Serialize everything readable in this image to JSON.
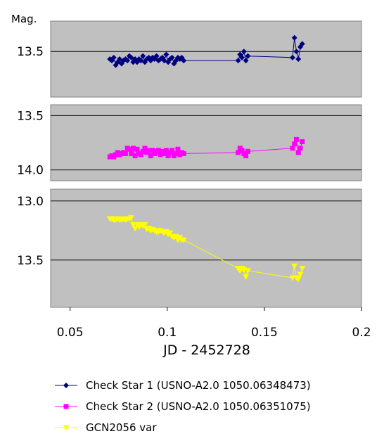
{
  "chart_data": {
    "type": "line",
    "ylabel": "Mag.",
    "xlabel": "JD - 2452728",
    "xlim": [
      0.04,
      0.2
    ],
    "x_ticks": [
      "0.05",
      "0.1",
      "0.15",
      "0.2"
    ],
    "x_tick_values": [
      0.05,
      0.1,
      0.15,
      0.2
    ],
    "legend_position": "bottom",
    "panels": [
      {
        "series_index": 0,
        "ylim_top": 13.3,
        "ylim_bottom": 13.8,
        "y_ticks": [
          "13.5"
        ],
        "y_tick_values": [
          13.5
        ],
        "gridlines": [
          13.5
        ]
      },
      {
        "series_index": 1,
        "ylim_top": 13.4,
        "ylim_bottom": 14.1,
        "y_ticks": [
          "13.5",
          "14.0"
        ],
        "y_tick_values": [
          13.5,
          14.0
        ],
        "gridlines": [
          13.5,
          14.0
        ]
      },
      {
        "series_index": 2,
        "ylim_top": 12.9,
        "ylim_bottom": 13.9,
        "y_ticks": [
          "13.0",
          "13.5"
        ],
        "y_tick_values": [
          13.0,
          13.5
        ],
        "gridlines": [
          13.0,
          13.5
        ]
      }
    ],
    "series": [
      {
        "name": "Check Star 1 (USNO-A2.0 1050.06348473)",
        "color": "#000080",
        "marker": "diamond",
        "x": [
          0.0705,
          0.0715,
          0.0725,
          0.0735,
          0.0745,
          0.0755,
          0.0765,
          0.0775,
          0.0785,
          0.0795,
          0.0805,
          0.0815,
          0.0825,
          0.0835,
          0.0845,
          0.0855,
          0.0865,
          0.0875,
          0.0885,
          0.0895,
          0.0905,
          0.0915,
          0.0925,
          0.0935,
          0.0945,
          0.0955,
          0.0965,
          0.0975,
          0.0985,
          0.0995,
          0.1005,
          0.1015,
          0.1025,
          0.1035,
          0.1045,
          0.1055,
          0.1065,
          0.1075,
          0.1085,
          0.1365,
          0.1375,
          0.1385,
          0.1395,
          0.1405,
          0.1415,
          0.1645,
          0.1655,
          0.1665,
          0.1675,
          0.1685,
          0.1695
        ],
        "y": [
          13.55,
          13.56,
          13.54,
          13.59,
          13.57,
          13.55,
          13.58,
          13.56,
          13.55,
          13.56,
          13.53,
          13.54,
          13.57,
          13.55,
          13.57,
          13.55,
          13.56,
          13.53,
          13.57,
          13.55,
          13.54,
          13.56,
          13.54,
          13.55,
          13.53,
          13.56,
          13.55,
          13.54,
          13.56,
          13.52,
          13.57,
          13.55,
          13.54,
          13.58,
          13.56,
          13.54,
          13.55,
          13.54,
          13.56,
          13.56,
          13.52,
          13.54,
          13.5,
          13.56,
          13.53,
          13.54,
          13.41,
          13.5,
          13.55,
          13.47,
          13.45
        ]
      },
      {
        "name": "Check Star 2 (USNO-A2.0 1050.06351075)",
        "color": "#ff00ff",
        "marker": "square",
        "x": [
          0.0705,
          0.0715,
          0.0725,
          0.0735,
          0.0745,
          0.0755,
          0.0765,
          0.0775,
          0.0785,
          0.0795,
          0.0805,
          0.0815,
          0.0825,
          0.0835,
          0.0845,
          0.0855,
          0.0865,
          0.0875,
          0.0885,
          0.0895,
          0.0905,
          0.0915,
          0.0925,
          0.0935,
          0.0945,
          0.0955,
          0.0965,
          0.0975,
          0.0985,
          0.0995,
          0.1005,
          0.1015,
          0.1025,
          0.1035,
          0.1045,
          0.1055,
          0.1065,
          0.1075,
          0.1085,
          0.1365,
          0.1375,
          0.1385,
          0.1395,
          0.1405,
          0.1415,
          0.1645,
          0.1655,
          0.1665,
          0.1675,
          0.1685,
          0.1695
        ],
        "y": [
          13.88,
          13.87,
          13.88,
          13.86,
          13.84,
          13.86,
          13.85,
          13.84,
          13.85,
          13.8,
          13.81,
          13.85,
          13.8,
          13.87,
          13.81,
          13.85,
          13.86,
          13.83,
          13.8,
          13.84,
          13.82,
          13.87,
          13.82,
          13.85,
          13.83,
          13.82,
          13.86,
          13.83,
          13.85,
          13.82,
          13.87,
          13.84,
          13.82,
          13.87,
          13.85,
          13.81,
          13.86,
          13.84,
          13.85,
          13.84,
          13.8,
          13.82,
          13.85,
          13.87,
          13.83,
          13.8,
          13.76,
          13.72,
          13.84,
          13.8,
          13.74
        ]
      },
      {
        "name": "GCN2056 var",
        "color": "#ffff00",
        "marker": "triangle",
        "x": [
          0.0705,
          0.0715,
          0.0725,
          0.0735,
          0.0745,
          0.0755,
          0.0765,
          0.0775,
          0.0785,
          0.0795,
          0.0805,
          0.0815,
          0.0825,
          0.0835,
          0.0845,
          0.0855,
          0.0865,
          0.0875,
          0.0885,
          0.0895,
          0.0905,
          0.0915,
          0.0925,
          0.0935,
          0.0945,
          0.0955,
          0.0965,
          0.0975,
          0.0985,
          0.0995,
          0.1005,
          0.1015,
          0.1025,
          0.1035,
          0.1045,
          0.1055,
          0.1065,
          0.1075,
          0.1085,
          0.1365,
          0.1375,
          0.1385,
          0.1395,
          0.1405,
          0.1415,
          0.1645,
          0.1655,
          0.1665,
          0.1675,
          0.1685,
          0.1695
        ],
        "y": [
          13.15,
          13.15,
          13.16,
          13.16,
          13.15,
          13.16,
          13.16,
          13.15,
          13.16,
          13.15,
          13.15,
          13.14,
          13.2,
          13.23,
          13.2,
          13.22,
          13.2,
          13.21,
          13.2,
          13.24,
          13.23,
          13.25,
          13.24,
          13.25,
          13.26,
          13.26,
          13.25,
          13.26,
          13.27,
          13.26,
          13.28,
          13.27,
          13.3,
          13.31,
          13.3,
          13.33,
          13.31,
          13.33,
          13.33,
          13.57,
          13.59,
          13.57,
          13.58,
          13.64,
          13.59,
          13.65,
          13.55,
          13.65,
          13.66,
          13.62,
          13.57
        ]
      }
    ]
  }
}
